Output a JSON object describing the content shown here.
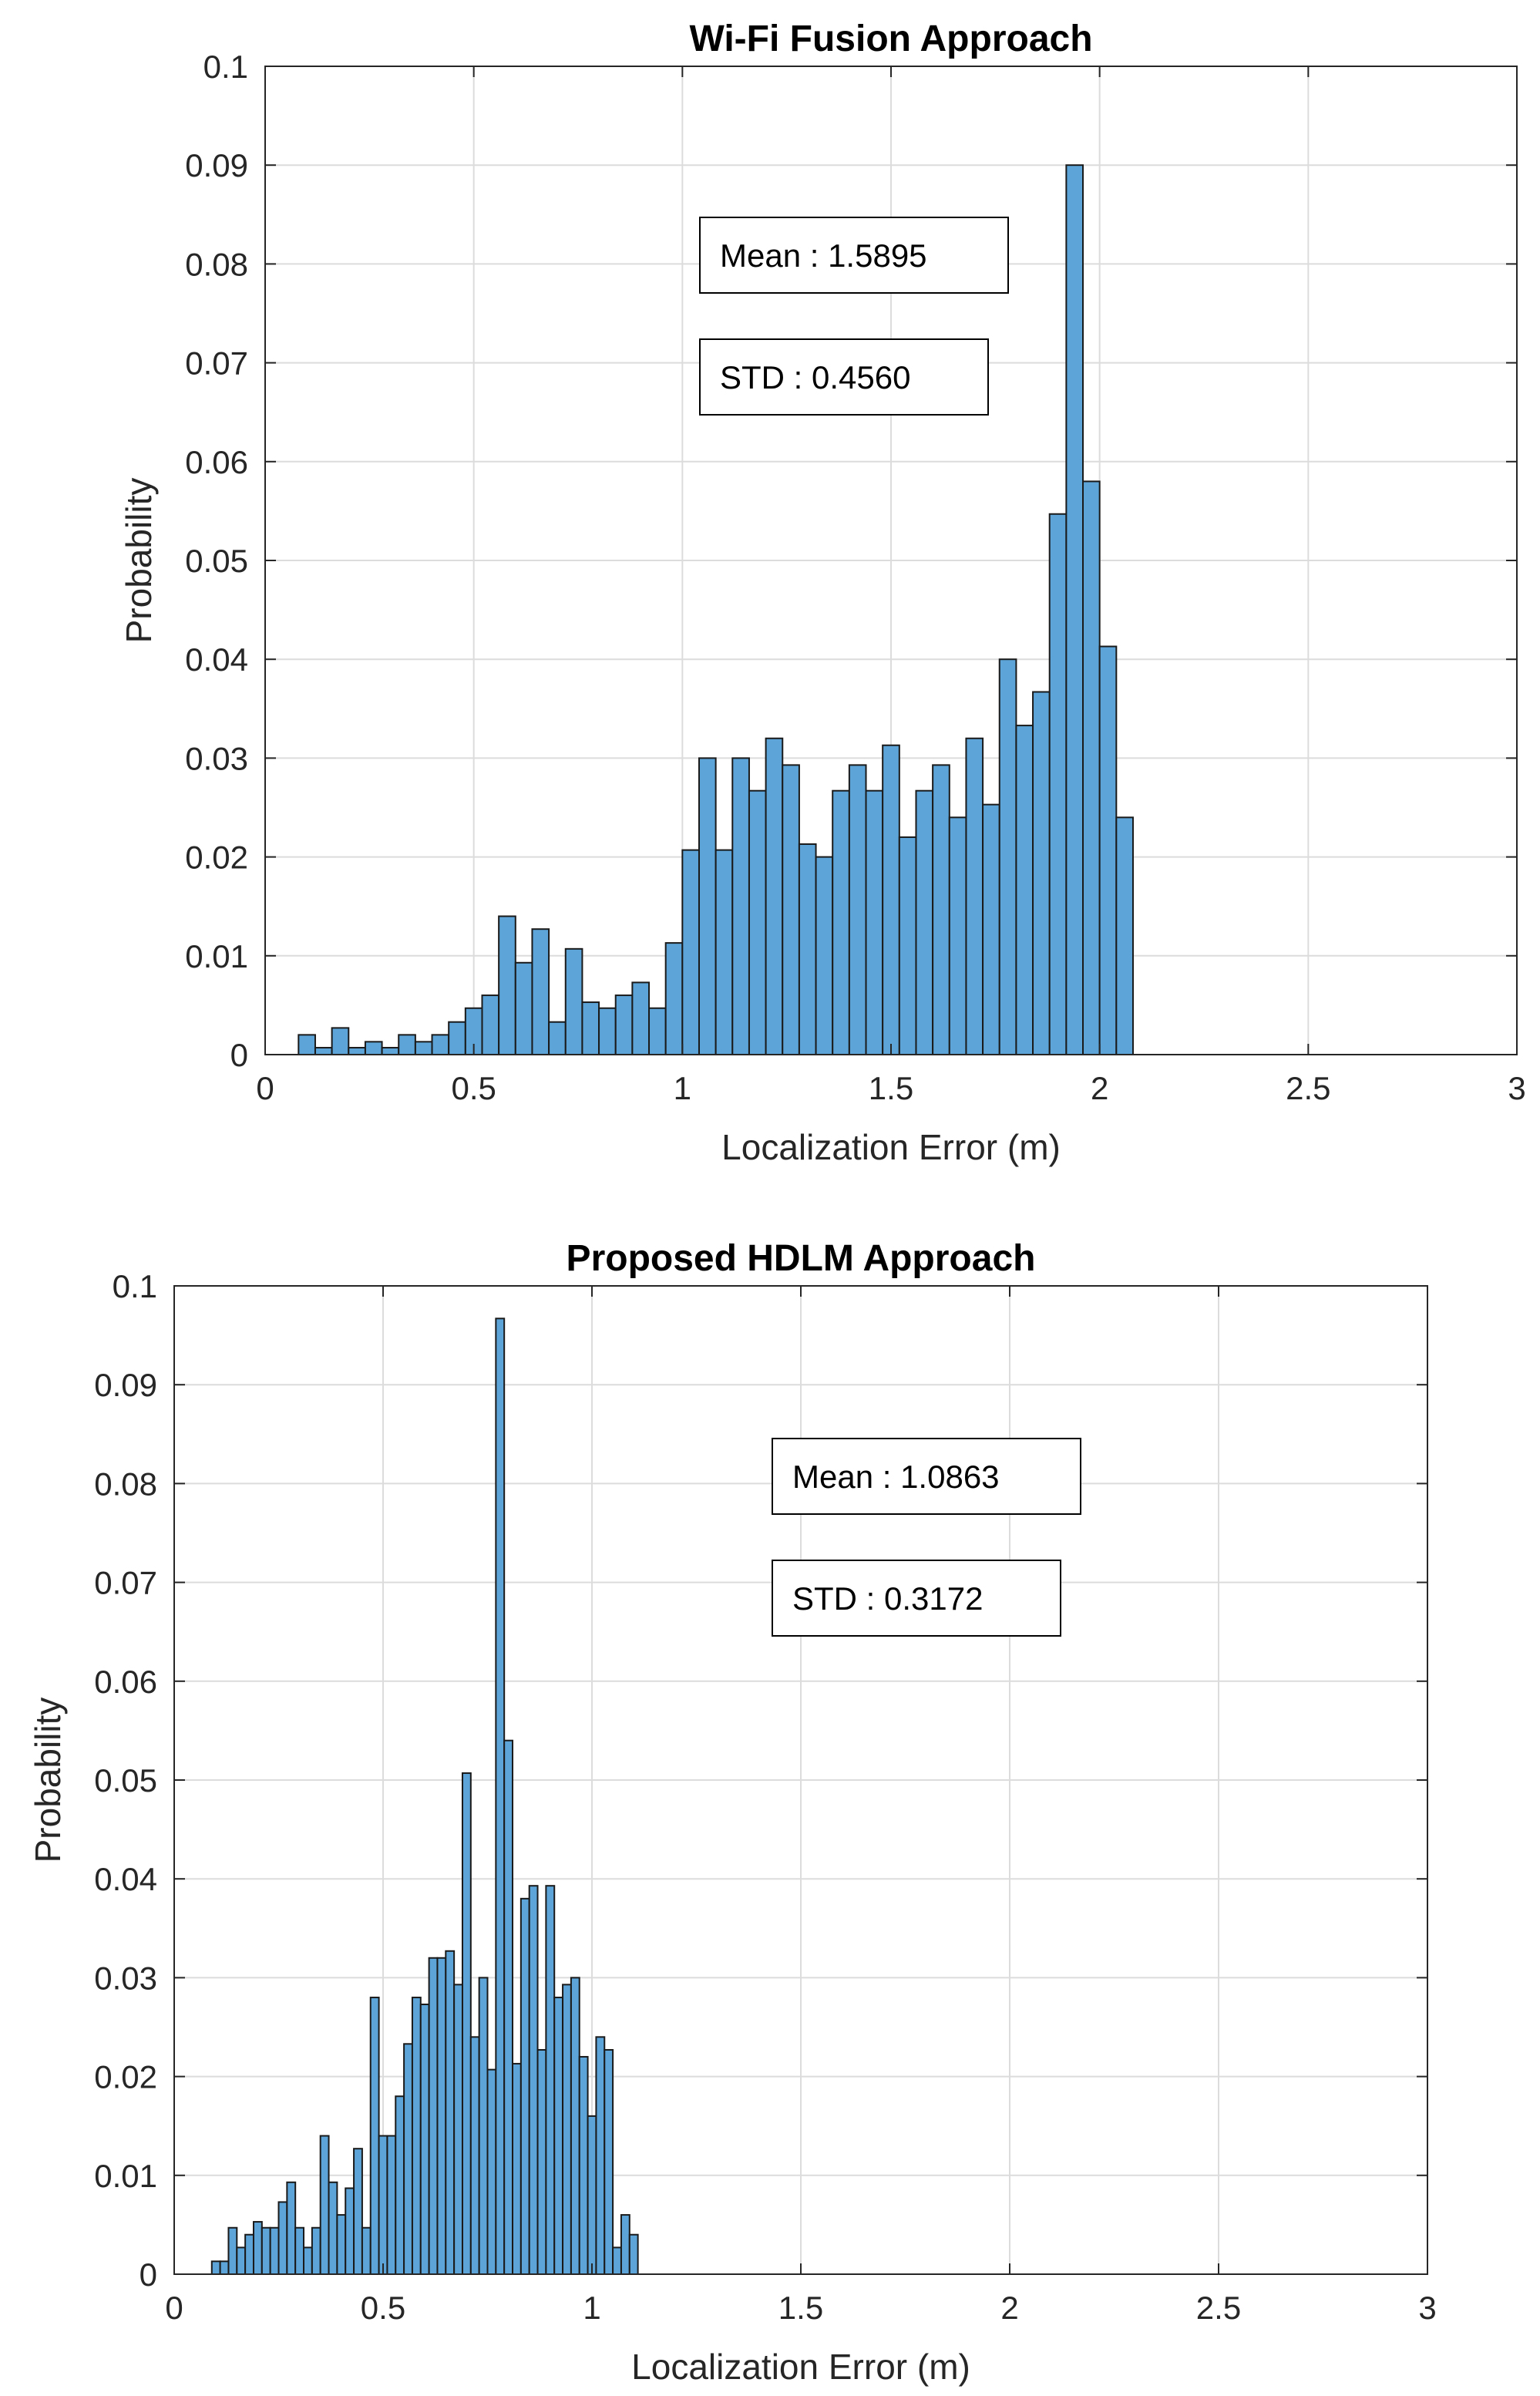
{
  "colors": {
    "bar_fill": "#5DA5D8",
    "bar_edge": "#1a1a1a",
    "grid": "#dcdcdc",
    "axis": "#262626"
  },
  "chart_data": [
    {
      "type": "bar",
      "histogram": true,
      "title": "Wi-Fi Fusion Approach",
      "xlabel": "Localization Error (m)",
      "ylabel": "Probability",
      "xlim": [
        0,
        3
      ],
      "ylim": [
        0,
        0.1
      ],
      "xticks": [
        "0",
        "0.5",
        "1",
        "1.5",
        "2",
        "2.5",
        "3"
      ],
      "yticks": [
        "0",
        "0.01",
        "0.02",
        "0.03",
        "0.04",
        "0.05",
        "0.06",
        "0.07",
        "0.08",
        "0.09",
        "0.1"
      ],
      "grid": true,
      "bin_start": 0.08,
      "bin_width": 0.04,
      "values": [
        0.002,
        0.0007,
        0.0027,
        0.0007,
        0.0013,
        0.0007,
        0.002,
        0.0013,
        0.002,
        0.0033,
        0.0047,
        0.006,
        0.014,
        0.0093,
        0.0127,
        0.0033,
        0.0107,
        0.0053,
        0.0047,
        0.006,
        0.0073,
        0.0047,
        0.0113,
        0.0207,
        0.03,
        0.0207,
        0.03,
        0.0267,
        0.032,
        0.0293,
        0.0213,
        0.02,
        0.0267,
        0.0293,
        0.0267,
        0.0313,
        0.022,
        0.0267,
        0.0293,
        0.024,
        0.032,
        0.0253,
        0.04,
        0.0333,
        0.0367,
        0.0547,
        0.09,
        0.058,
        0.0413,
        0.024
      ],
      "annotations": [
        "Mean : 1.5895",
        "STD : 0.4560"
      ]
    },
    {
      "type": "bar",
      "histogram": true,
      "title": "Proposed HDLM Approach",
      "xlabel": "Localization Error (m)",
      "ylabel": "Probability",
      "xlim": [
        0,
        3
      ],
      "ylim": [
        0,
        0.1
      ],
      "xticks": [
        "0",
        "0.5",
        "1",
        "1.5",
        "2",
        "2.5",
        "3"
      ],
      "yticks": [
        "0",
        "0.01",
        "0.02",
        "0.03",
        "0.04",
        "0.05",
        "0.06",
        "0.07",
        "0.08",
        "0.09",
        "0.1"
      ],
      "grid": true,
      "bin_start": 0.09,
      "bin_width": 0.02,
      "values": [
        0.0013,
        0.0013,
        0.0047,
        0.0027,
        0.004,
        0.0053,
        0.0047,
        0.0047,
        0.0073,
        0.0093,
        0.0047,
        0.0027,
        0.0047,
        0.014,
        0.0093,
        0.006,
        0.0087,
        0.0127,
        0.0047,
        0.028,
        0.014,
        0.014,
        0.018,
        0.0233,
        0.028,
        0.0273,
        0.032,
        0.032,
        0.0327,
        0.0293,
        0.0507,
        0.024,
        0.03,
        0.0207,
        0.0967,
        0.054,
        0.0213,
        0.038,
        0.0393,
        0.0227,
        0.0393,
        0.028,
        0.0293,
        0.03,
        0.022,
        0.016,
        0.024,
        0.0227,
        0.0027,
        0.006,
        0.004
      ],
      "annotations": [
        "Mean : 1.0863",
        "STD : 0.3172"
      ]
    }
  ]
}
